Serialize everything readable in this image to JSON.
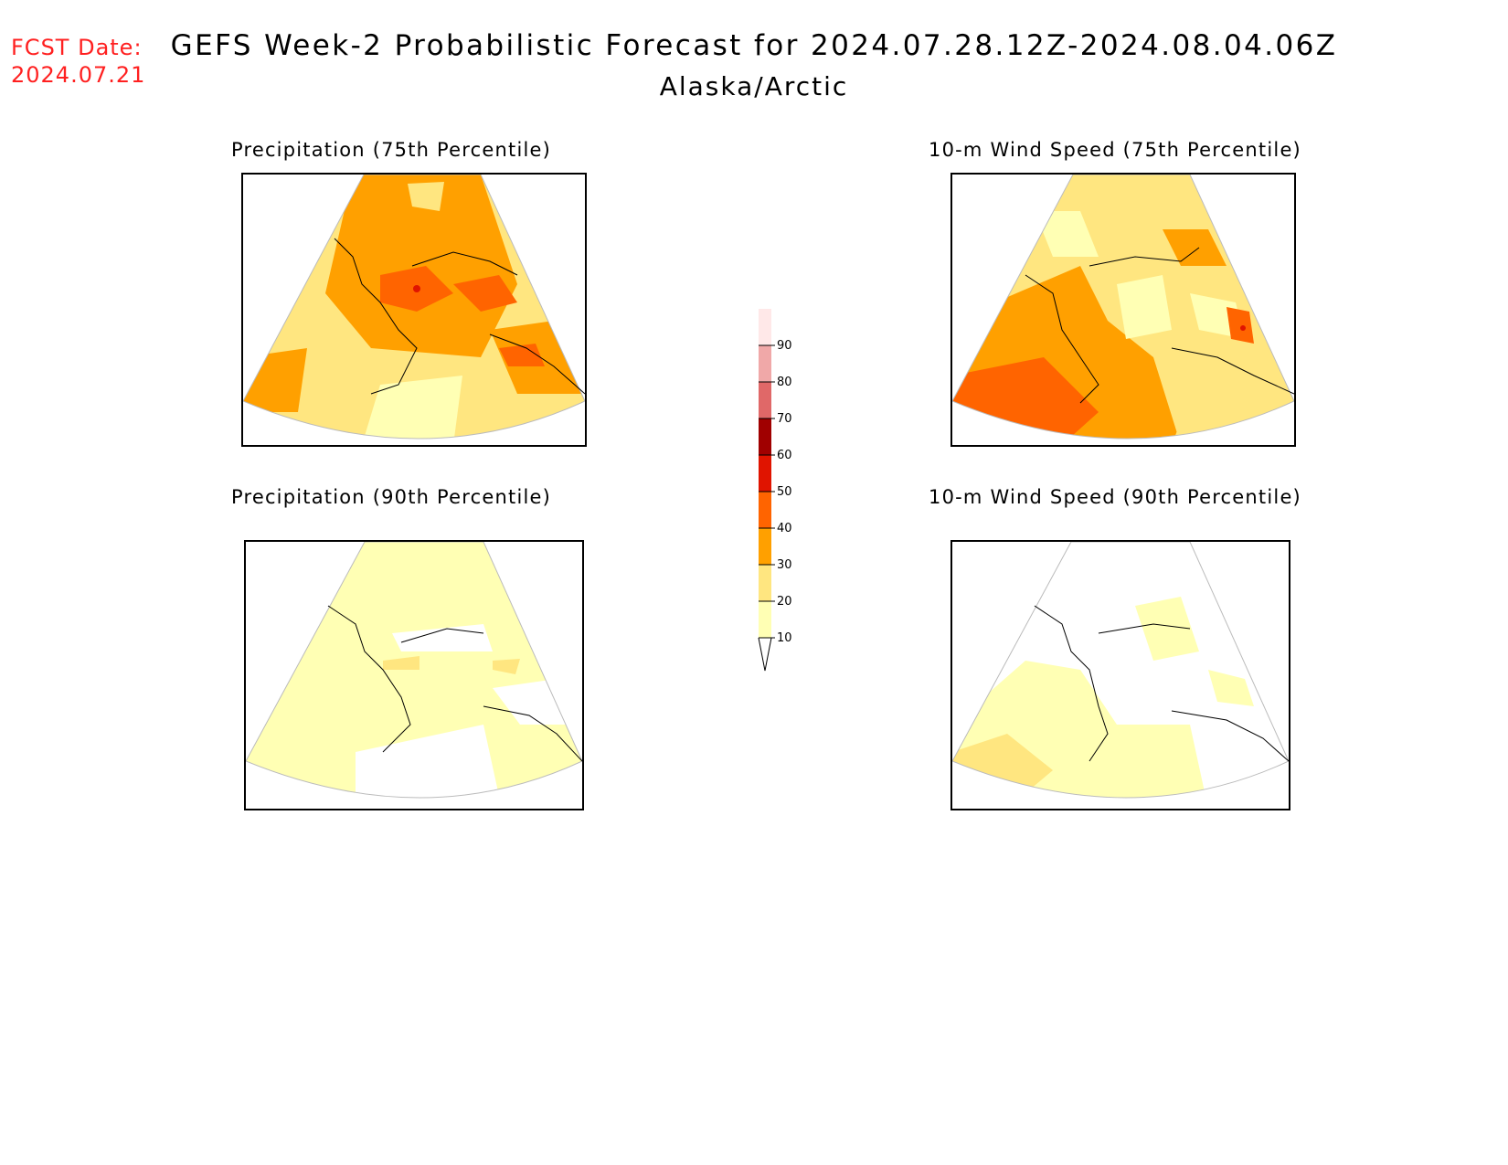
{
  "header": {
    "fcst_label": "FCST Date:",
    "fcst_date": "2024.07.21",
    "title": "GEFS Week-2 Probabilistic Forecast for 2024.07.28.12Z-2024.08.04.06Z",
    "region": "Alaska/Arctic"
  },
  "panels": [
    {
      "title": "Precipitation (75th Percentile)",
      "variable": "precipitation",
      "percentile": 75
    },
    {
      "title": "10-m Wind Speed (75th Percentile)",
      "variable": "wind-speed",
      "percentile": 75
    },
    {
      "title": "Precipitation (90th Percentile)",
      "variable": "precipitation",
      "percentile": 90
    },
    {
      "title": "10-m Wind Speed (90th Percentile)",
      "variable": "wind-speed",
      "percentile": 90
    }
  ],
  "colorbar": {
    "levels": [
      "10",
      "20",
      "30",
      "40",
      "50",
      "60",
      "70",
      "80",
      "90"
    ],
    "colors": [
      "#ffffb4",
      "#ffe680",
      "#ffa000",
      "#ff6400",
      "#e01400",
      "#a00000",
      "#e06868",
      "#f0a8a8",
      "#ffe8e8"
    ]
  },
  "colors": {
    "fcst_text": "#ff2020",
    "land_outline": "#000000",
    "graticule": "#999999"
  }
}
